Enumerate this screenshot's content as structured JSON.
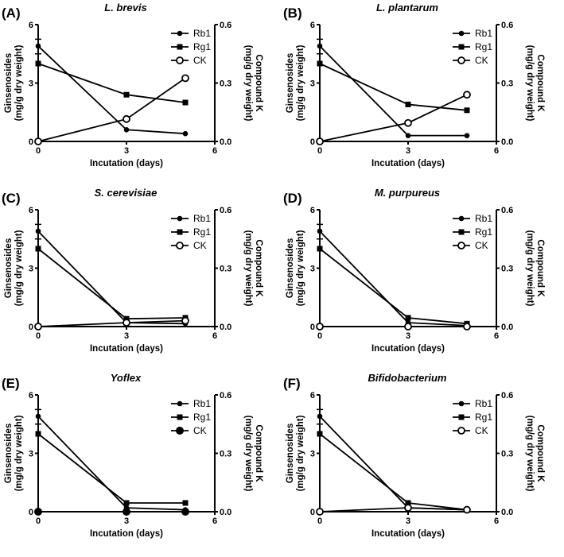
{
  "chart_data": [
    {
      "panel": "(A)",
      "title": "L. brevis",
      "type": "line",
      "x": [
        0,
        3,
        5
      ],
      "series": [
        {
          "name": "Rb1",
          "axis": "left",
          "marker": "filled-circle",
          "values": [
            4.9,
            0.6,
            0.4
          ]
        },
        {
          "name": "Rg1",
          "axis": "left",
          "marker": "filled-square",
          "values": [
            4.0,
            2.4,
            2.0
          ]
        },
        {
          "name": "CK",
          "axis": "right",
          "marker": "open-circle",
          "values": [
            0,
            0.115,
            0.325
          ]
        }
      ]
    },
    {
      "panel": "(B)",
      "title": "L. plantarum",
      "type": "line",
      "x": [
        0,
        3,
        5
      ],
      "series": [
        {
          "name": "Rb1",
          "axis": "left",
          "marker": "filled-circle",
          "values": [
            4.9,
            0.3,
            0.3
          ]
        },
        {
          "name": "Rg1",
          "axis": "left",
          "marker": "filled-square",
          "values": [
            4.0,
            1.9,
            1.6
          ]
        },
        {
          "name": "CK",
          "axis": "right",
          "marker": "open-circle",
          "values": [
            0,
            0.095,
            0.24
          ]
        }
      ]
    },
    {
      "panel": "(C)",
      "title": "S. cerevisiae",
      "type": "line",
      "x": [
        0,
        3,
        5
      ],
      "series": [
        {
          "name": "Rb1",
          "axis": "left",
          "marker": "filled-circle",
          "values": [
            4.9,
            0.2,
            0.15
          ]
        },
        {
          "name": "Rg1",
          "axis": "left",
          "marker": "filled-square",
          "values": [
            4.0,
            0.4,
            0.45
          ]
        },
        {
          "name": "CK",
          "axis": "right",
          "marker": "open-circle",
          "values": [
            0,
            0.02,
            0.03
          ]
        }
      ]
    },
    {
      "panel": "(D)",
      "title": "M. purpureus",
      "type": "line",
      "x": [
        0,
        3,
        5
      ],
      "series": [
        {
          "name": "Rb1",
          "axis": "left",
          "marker": "filled-circle",
          "values": [
            4.9,
            0.2,
            0.05
          ]
        },
        {
          "name": "Rg1",
          "axis": "left",
          "marker": "filled-square",
          "values": [
            4.0,
            0.45,
            0.15
          ]
        },
        {
          "name": "CK",
          "axis": "right",
          "marker": "open-circle",
          "values": [
            0,
            0,
            0
          ]
        }
      ]
    },
    {
      "panel": "(E)",
      "title": "Yoflex",
      "type": "line",
      "x": [
        0,
        3,
        5
      ],
      "series": [
        {
          "name": "Rb1",
          "axis": "left",
          "marker": "filled-circle",
          "values": [
            4.9,
            0.2,
            0.1
          ]
        },
        {
          "name": "Rg1",
          "axis": "left",
          "marker": "filled-square",
          "values": [
            4.0,
            0.45,
            0.45
          ]
        },
        {
          "name": "CK",
          "axis": "right",
          "marker": "big-filled-circle",
          "values": [
            0,
            0,
            0
          ]
        }
      ]
    },
    {
      "panel": "(F)",
      "title": "Bifidobacterium",
      "type": "line",
      "x": [
        0,
        3,
        5
      ],
      "series": [
        {
          "name": "Rb1",
          "axis": "left",
          "marker": "filled-circle",
          "values": [
            4.9,
            0.2,
            0.1
          ]
        },
        {
          "name": "Rg1",
          "axis": "left",
          "marker": "filled-square",
          "values": [
            4.0,
            0.45,
            0.1
          ]
        },
        {
          "name": "CK",
          "axis": "right",
          "marker": "open-circle",
          "values": [
            0,
            0.02,
            0.01
          ]
        }
      ]
    }
  ],
  "axes": {
    "xlabel": "Incutation (days)",
    "xticks": [
      "0",
      "3",
      "6"
    ],
    "xlim": [
      0,
      6
    ],
    "ylabel_left": [
      "Ginsenosides",
      "(mg/g dry weight)"
    ],
    "yticks_left": [
      "0",
      "3",
      "6"
    ],
    "ylim_left": [
      0,
      6
    ],
    "ylabel_right": [
      "Compound K",
      "(mg/g dry weight)"
    ],
    "yticks_right": [
      "0.0",
      "0.3",
      "0.6"
    ],
    "ylim_right": [
      0,
      0.6
    ]
  }
}
